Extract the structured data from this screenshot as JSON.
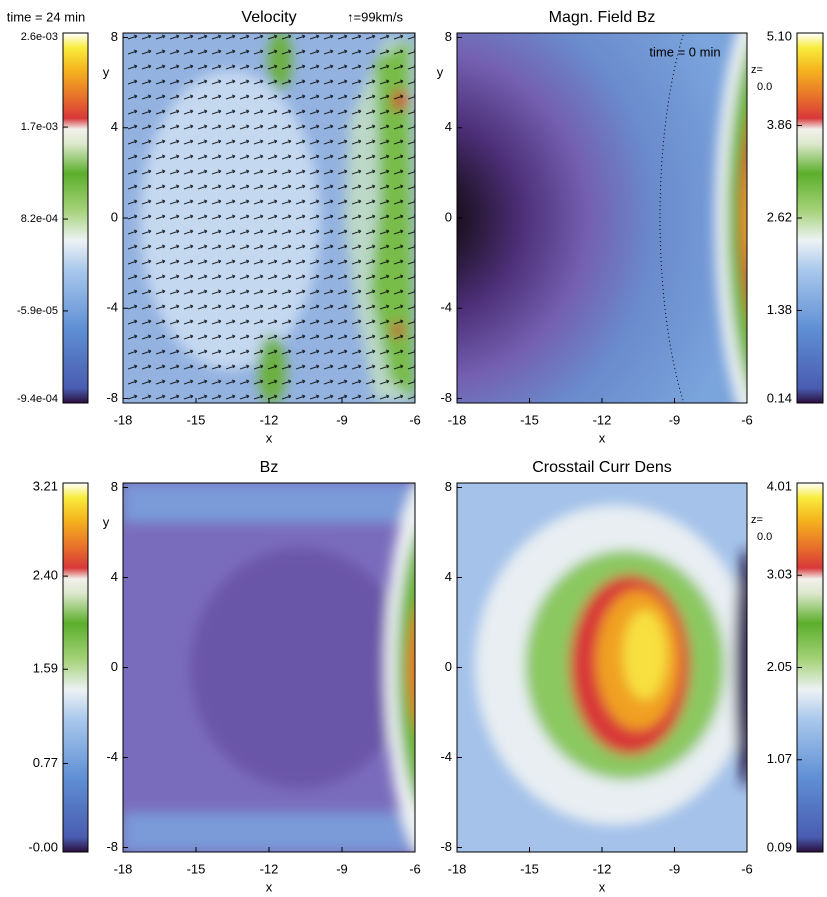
{
  "chart_data": [
    {
      "type": "heatmap",
      "title": "Velocity",
      "annotation": "↑=99km/s",
      "time_label": "time = 24 min",
      "x_label": "x",
      "y_label": "y",
      "xlim": [
        -18,
        -6
      ],
      "xticks": [
        -18,
        -15,
        -12,
        -9,
        -6
      ],
      "ylim": [
        -8.2,
        8.2
      ],
      "yticks": [
        -8,
        -4,
        0,
        4,
        8
      ],
      "clim": [
        -0.00094,
        0.0026
      ],
      "cticks": [
        {
          "value": -0.00094,
          "label": "-9.4e-04"
        },
        {
          "value": -5.9e-05,
          "label": "-5.9e-05"
        },
        {
          "value": 0.00082,
          "label": "8.2e-04"
        },
        {
          "value": 0.0017,
          "label": "1.7e-03"
        },
        {
          "value": 0.0026,
          "label": "2.6e-03"
        }
      ]
    },
    {
      "type": "heatmap",
      "title": "Magn. Field Bz",
      "time_label": "time = 0 min",
      "x_label": "x",
      "y_label": "y",
      "z_label": "z=",
      "z_value": "0.0",
      "xlim": [
        -18,
        -6
      ],
      "xticks": [
        -18,
        -15,
        -12,
        -9,
        -6
      ],
      "ylim": [
        -8.2,
        8.2
      ],
      "yticks": [
        -8,
        -4,
        0,
        4,
        8
      ],
      "clim": [
        0.14,
        5.1
      ],
      "cticks": [
        0.14,
        1.38,
        2.62,
        3.86,
        {
          "value": 5.1,
          "label": "5.10"
        }
      ]
    },
    {
      "type": "heatmap",
      "title": "Bz",
      "x_label": "x",
      "y_label": "y",
      "xlim": [
        -18,
        -6
      ],
      "xticks": [
        -18,
        -15,
        -12,
        -9,
        -6
      ],
      "ylim": [
        -8.2,
        8.2
      ],
      "yticks": [
        -8,
        -4,
        0,
        4,
        8
      ],
      "clim": [
        0,
        3.21
      ],
      "cticks": [
        {
          "value": 0,
          "label": "-0.00"
        },
        0.77,
        1.59,
        {
          "value": 2.4,
          "label": "2.40"
        },
        3.21
      ]
    },
    {
      "type": "heatmap",
      "title": "Crosstail Curr Dens",
      "x_label": "x",
      "z_label": "z=",
      "z_value": "0.0",
      "xlim": [
        -18,
        -6
      ],
      "xticks": [
        -18,
        -15,
        -12,
        -9,
        -6
      ],
      "ylim": [
        -8.2,
        8.2
      ],
      "yticks": [
        -8,
        -4,
        0,
        4,
        8
      ],
      "clim": [
        0.09,
        4.01
      ],
      "cticks": [
        0.09,
        1.07,
        2.05,
        3.03,
        4.01
      ]
    }
  ]
}
